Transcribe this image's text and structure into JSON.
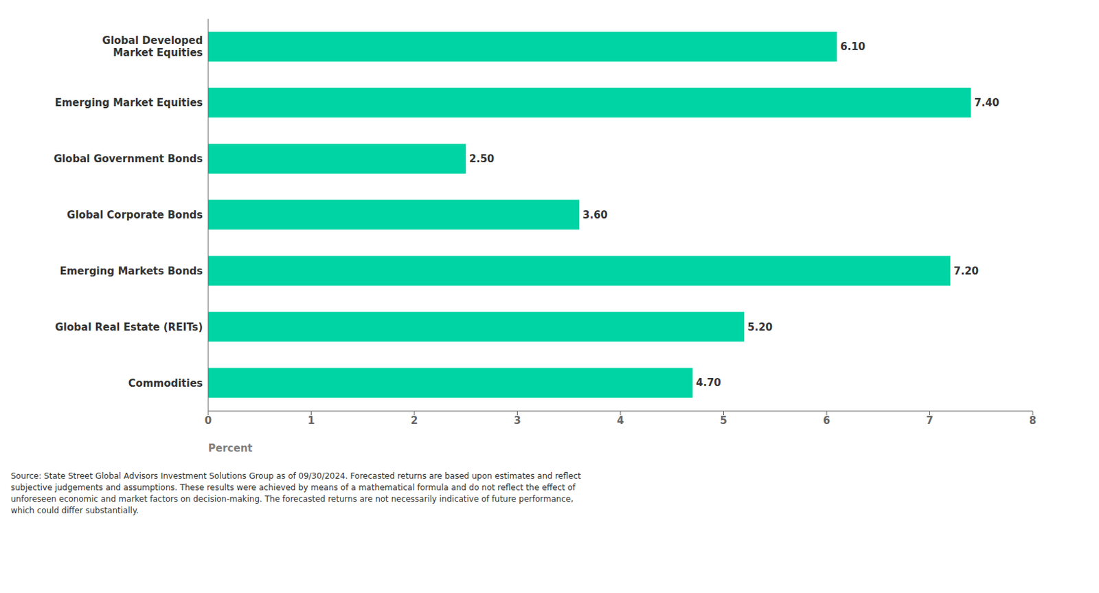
{
  "chart_data": {
    "type": "bar",
    "orientation": "horizontal",
    "categories": [
      "Global Developed\nMarket Equities",
      "Emerging Market Equities",
      "Global Government Bonds",
      "Global Corporate Bonds",
      "Emerging Markets Bonds",
      "Global Real Estate (REITs)",
      "Commodities"
    ],
    "values": [
      6.1,
      7.4,
      2.5,
      3.6,
      7.2,
      5.2,
      4.7
    ],
    "value_labels": [
      "6.10",
      "7.40",
      "2.50",
      "3.60",
      "7.20",
      "5.20",
      "4.70"
    ],
    "data_labels": true,
    "color": "#00D4A4",
    "xlabel": "Percent",
    "xlim": [
      0,
      8
    ],
    "xticks": [
      0,
      1,
      2,
      3,
      4,
      5,
      6,
      7,
      8
    ],
    "grid": false,
    "footnote": "Source: State Street Global Advisors Investment Solutions Group as of 09/30/2024. Forecasted returns are based upon estimates and reflect\nsubjective judgements and assumptions. These results were achieved by means of a mathematical formula and do not reflect the effect of\nunforeseen economic and market factors on decision-making. The forecasted returns are not necessarily indicative of future performance,\nwhich could differ substantially."
  }
}
